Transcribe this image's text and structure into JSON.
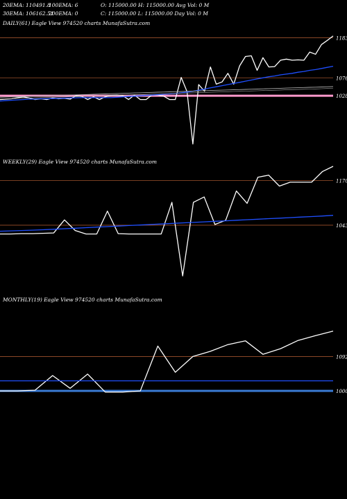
{
  "header": {
    "l1a": "20EMA: 110491.8",
    "l1b": "100EMA: 6",
    "l1c": "O: 115000.00 H: 115000.00 Avg Vol: 0  M",
    "l2a": "30EMA: 106162.51",
    "l2b": "200EMA: 0",
    "l2c": "C: 115000.00 L: 115000.00 Day Vol: 0  M"
  },
  "colors": {
    "background": "#000000",
    "price": "#ffffff",
    "ema_fast": "#1f4fff",
    "ema_slow": "#aaaaaa",
    "level_line": "#a0522d",
    "daily_band": "#ff99cc",
    "monthly_band": "#3a7bd5"
  },
  "chart_data": [
    {
      "type": "line",
      "title": "DAILY(61) Eagle  View  974520  charts MunafaSutra.com",
      "yticks": [
        {
          "label": "1183",
          "value": 118300
        },
        {
          "label": "1076",
          "value": 107600
        },
        {
          "label": "1028",
          "value": 102800
        }
      ],
      "ylim": [
        88000,
        121000
      ],
      "series": [
        {
          "role": "price",
          "values": [
            101800,
            101900,
            102000,
            102300,
            102500,
            102200,
            101800,
            102000,
            101800,
            102200,
            102000,
            102100,
            101900,
            102800,
            102600,
            101800,
            102500,
            101800,
            102500,
            102900,
            103000,
            102800,
            101800,
            103000,
            101800,
            101800,
            103000,
            103000,
            102700,
            101800,
            101800,
            107700,
            103900,
            89900,
            105800,
            104000,
            110500,
            105900,
            106500,
            108800,
            105900,
            110800,
            113300,
            113500,
            109600,
            113000,
            110500,
            110600,
            112300,
            112600,
            112300,
            112400,
            112300,
            114500,
            113900,
            116500,
            117600,
            118800
          ]
        },
        {
          "role": "ema",
          "values": [
            101400,
            101500,
            101600,
            101700,
            101800,
            101900,
            101900,
            102000,
            102000,
            102050,
            102100,
            102150,
            102200,
            102250,
            102300,
            102300,
            102300,
            102300,
            102300,
            102300,
            102400,
            102500,
            102600,
            102700,
            102800,
            102900,
            103000,
            103100,
            103200,
            103300,
            103400,
            103600,
            103800,
            104000,
            104300,
            104600,
            104900,
            105200,
            105500,
            105800,
            106100,
            106400,
            106700,
            107000,
            107300,
            107600,
            107900,
            108100,
            108400,
            108600,
            108800,
            109100,
            109300,
            109600,
            109800,
            110100,
            110400,
            110700
          ]
        },
        {
          "role": "ema_slow",
          "values": [
            102400,
            102450,
            102500,
            102550,
            102600,
            102650,
            102700,
            102750,
            102800,
            102850,
            102900,
            102950,
            103000,
            103050,
            103100,
            103150,
            103200,
            103250,
            103300,
            103350,
            103400,
            103450,
            103500,
            103550,
            103600,
            103650,
            103700,
            103750,
            103800,
            103850,
            103900,
            103950,
            104000,
            104050,
            104100,
            104150,
            104200,
            104250,
            104300,
            104350,
            104400,
            104450,
            104500,
            104550,
            104600,
            104650,
            104700,
            104750,
            104800,
            104850,
            104900,
            104950,
            105000,
            105050,
            105100,
            105150,
            105200,
            105250
          ]
        }
      ]
    },
    {
      "type": "line",
      "title": "WEEKLY(29) Eagle  View  974520  charts MunafaSutra.com",
      "yticks": [
        {
          "label": "1170",
          "value": 117000
        },
        {
          "label": "1043",
          "value": 104300
        }
      ],
      "ylim": [
        86000,
        121000
      ],
      "series": [
        {
          "role": "price",
          "values": [
            101800,
            101800,
            101900,
            101900,
            102000,
            102100,
            105800,
            102800,
            101800,
            101800,
            108300,
            101900,
            101800,
            101800,
            101800,
            101800,
            110800,
            89900,
            110800,
            112300,
            104500,
            105700,
            114000,
            110500,
            117900,
            118500,
            115400,
            116500,
            116500,
            116500,
            119500,
            121000
          ]
        },
        {
          "role": "ema",
          "values": [
            102600,
            102700,
            102800,
            102900,
            103000,
            103150,
            103300,
            103450,
            103600,
            103750,
            103900,
            104050,
            104200,
            104350,
            104500,
            104650,
            104800,
            104950,
            105100,
            105250,
            105400,
            105550,
            105700,
            105850,
            106000,
            106150,
            106300,
            106450,
            106600,
            106750,
            106900,
            107100
          ]
        }
      ]
    },
    {
      "type": "line",
      "title": "MONTHLY(19) Eagle  View  974520  charts MunafaSutra.com",
      "yticks": [
        {
          "label": "1092",
          "value": 109200
        },
        {
          "label": "1000",
          "value": 100000
        }
      ],
      "ylim": [
        90000,
        123000
      ],
      "series": [
        {
          "role": "price",
          "values": [
            100000,
            100000,
            100200,
            104100,
            100700,
            104500,
            99700,
            99700,
            100000,
            112000,
            105000,
            109200,
            110600,
            112400,
            113400,
            109800,
            111300,
            113500,
            114800,
            116000
          ]
        },
        {
          "role": "ema",
          "values": [
            102700,
            102700,
            102700,
            102700,
            102700,
            102700,
            102700,
            102700,
            102700,
            102700,
            102700,
            102700,
            102700,
            102700,
            102700,
            102700,
            102700,
            102700,
            102700,
            102700
          ]
        }
      ]
    }
  ]
}
